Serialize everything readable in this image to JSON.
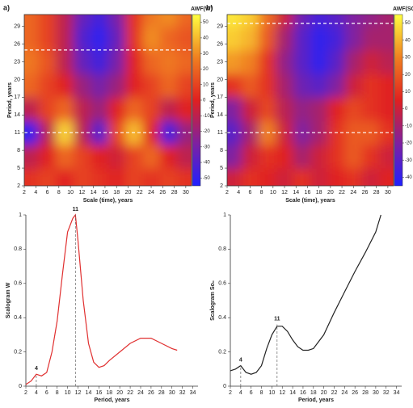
{
  "chart_data": [
    {
      "type": "heatmap",
      "panel": "a)",
      "colorbar_title": "AWF(W)",
      "xlabel": "Scale (time), years",
      "ylabel": "Period, years",
      "xlim": [
        2,
        31
      ],
      "ylim": [
        2,
        31
      ],
      "xticks": [
        2,
        4,
        6,
        8,
        10,
        12,
        14,
        16,
        18,
        20,
        22,
        24,
        26,
        28,
        30
      ],
      "yticks": [
        2,
        5,
        8,
        11,
        14,
        17,
        20,
        23,
        26,
        29
      ],
      "x": [
        3,
        6,
        9,
        12,
        15,
        18,
        21,
        24,
        27,
        30
      ],
      "y": [
        3,
        7,
        11,
        15,
        19,
        23,
        27,
        31
      ],
      "z": [
        [
          5,
          10,
          0,
          10,
          5,
          0,
          10,
          5,
          10,
          5
        ],
        [
          -10,
          0,
          20,
          10,
          0,
          -5,
          10,
          20,
          0,
          -10
        ],
        [
          -50,
          -10,
          45,
          -10,
          -40,
          10,
          40,
          0,
          -45,
          -20
        ],
        [
          -10,
          10,
          20,
          -10,
          -20,
          0,
          20,
          10,
          -10,
          0
        ],
        [
          20,
          10,
          0,
          -20,
          -30,
          -20,
          0,
          10,
          20,
          10
        ],
        [
          25,
          15,
          -10,
          -35,
          -45,
          -30,
          0,
          20,
          25,
          20
        ],
        [
          20,
          10,
          -10,
          -40,
          -50,
          -35,
          5,
          30,
          20,
          15
        ],
        [
          20,
          10,
          -10,
          -35,
          -45,
          -30,
          5,
          25,
          30,
          20
        ]
      ],
      "clim": [
        -55,
        55
      ],
      "cticks": [
        -50,
        -40,
        -30,
        -20,
        -10,
        0,
        10,
        20,
        30,
        40,
        50
      ],
      "hlines": [
        11,
        25
      ]
    },
    {
      "type": "heatmap",
      "panel": "b)",
      "colorbar_title": "AWF(SO",
      "xlabel": "Scale (time), years",
      "ylabel": "Period, years",
      "xlim": [
        2,
        31
      ],
      "ylim": [
        2,
        31
      ],
      "xticks": [
        2,
        4,
        6,
        8,
        10,
        12,
        14,
        16,
        18,
        20,
        22,
        24,
        26,
        28,
        30
      ],
      "yticks": [
        2,
        5,
        8,
        11,
        14,
        17,
        20,
        23,
        26,
        29
      ],
      "x": [
        3,
        6,
        9,
        12,
        15,
        18,
        21,
        24,
        27,
        30
      ],
      "y": [
        3,
        7,
        11,
        15,
        19,
        23,
        27,
        31
      ],
      "z": [
        [
          0,
          10,
          5,
          0,
          10,
          0,
          5,
          10,
          0,
          5
        ],
        [
          -20,
          0,
          10,
          5,
          -10,
          0,
          10,
          20,
          10,
          0
        ],
        [
          -30,
          -10,
          30,
          0,
          -20,
          -10,
          10,
          20,
          20,
          10
        ],
        [
          -20,
          0,
          15,
          -5,
          -15,
          -10,
          5,
          15,
          10,
          5
        ],
        [
          10,
          20,
          10,
          -10,
          -25,
          -30,
          -20,
          0,
          10,
          5
        ],
        [
          35,
          30,
          10,
          -15,
          -30,
          -40,
          -30,
          -10,
          0,
          -5
        ],
        [
          45,
          40,
          20,
          -10,
          -30,
          -40,
          -35,
          -20,
          -10,
          -10
        ],
        [
          50,
          45,
          25,
          0,
          -25,
          -35,
          -30,
          -20,
          -15,
          -10
        ]
      ],
      "clim": [
        -45,
        55
      ],
      "cticks": [
        -40,
        -30,
        -20,
        -10,
        0,
        10,
        20,
        30,
        40,
        50
      ],
      "hlines": [
        11,
        29.5
      ]
    },
    {
      "type": "line",
      "xlabel": "Period, years",
      "ylabel": "Scalogram W",
      "color": "#e03030",
      "xlim": [
        2,
        35
      ],
      "ylim": [
        0,
        1
      ],
      "xticks": [
        2,
        4,
        6,
        8,
        10,
        12,
        14,
        16,
        18,
        20,
        22,
        24,
        26,
        28,
        30,
        32,
        34
      ],
      "yticks": [
        0,
        0.2,
        0.4,
        0.6,
        0.8,
        1
      ],
      "x": [
        2,
        3,
        4,
        5,
        6,
        7,
        8,
        9,
        10,
        11,
        11.5,
        12,
        13,
        14,
        15,
        16,
        17,
        18,
        20,
        22,
        24,
        26,
        28,
        30,
        31
      ],
      "values": [
        0.01,
        0.03,
        0.07,
        0.06,
        0.08,
        0.2,
        0.38,
        0.65,
        0.9,
        0.98,
        1.0,
        0.85,
        0.5,
        0.25,
        0.14,
        0.11,
        0.12,
        0.15,
        0.2,
        0.25,
        0.28,
        0.28,
        0.25,
        0.22,
        0.21
      ],
      "annotations": [
        {
          "text": "4",
          "x": 4,
          "y": 0.07
        },
        {
          "text": "11",
          "x": 11.5,
          "y": 1.0
        }
      ]
    },
    {
      "type": "line",
      "xlabel": "Period, years",
      "ylabel": "Scalogram So₀",
      "color": "#222222",
      "xlim": [
        2,
        35
      ],
      "ylim": [
        0,
        1
      ],
      "xticks": [
        2,
        4,
        6,
        8,
        10,
        12,
        14,
        16,
        18,
        20,
        22,
        24,
        26,
        28,
        30,
        32,
        34
      ],
      "yticks": [
        0,
        0.2,
        0.4,
        0.6,
        0.8,
        1
      ],
      "x": [
        2,
        3,
        4,
        5,
        6,
        7,
        8,
        9,
        10,
        11,
        12,
        13,
        14,
        15,
        16,
        17,
        18,
        20,
        22,
        24,
        26,
        28,
        30,
        31
      ],
      "values": [
        0.09,
        0.1,
        0.12,
        0.08,
        0.07,
        0.08,
        0.12,
        0.22,
        0.3,
        0.35,
        0.35,
        0.32,
        0.27,
        0.23,
        0.21,
        0.21,
        0.22,
        0.3,
        0.43,
        0.55,
        0.67,
        0.78,
        0.9,
        1.0
      ],
      "annotations": [
        {
          "text": "4",
          "x": 4,
          "y": 0.12
        },
        {
          "text": "11",
          "x": 11,
          "y": 0.36
        }
      ]
    }
  ]
}
